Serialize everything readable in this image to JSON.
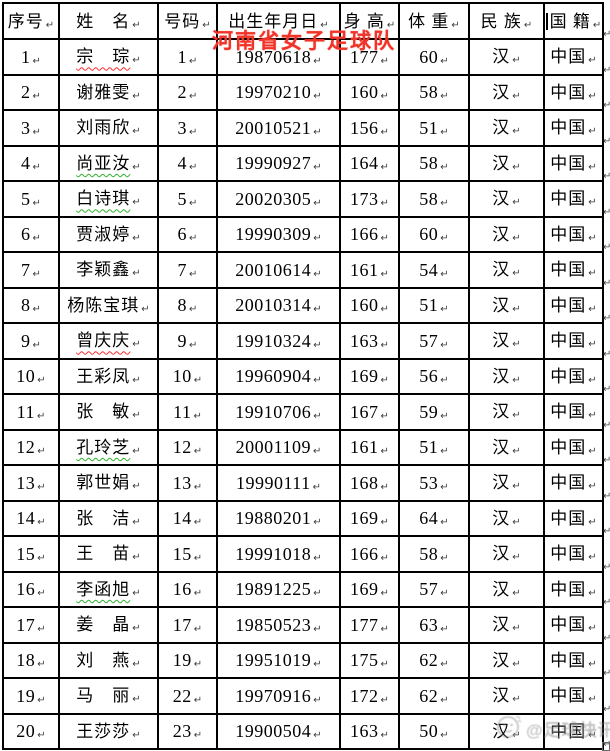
{
  "red_title": {
    "text": "河南省女子足球队",
    "color": "#f1342a"
  },
  "marks": {
    "cell_mark": "↵",
    "row_end_mark": "↵"
  },
  "watermark": {
    "handle": "@足球快讯",
    "emoji": "doge-face"
  },
  "table": {
    "headers": [
      {
        "label": "序号"
      },
      {
        "label": "姓　名"
      },
      {
        "label": "号码"
      },
      {
        "label": "出生年月日"
      },
      {
        "label": "身 高"
      },
      {
        "label": "体 重"
      },
      {
        "label": "民 族"
      },
      {
        "label": "国 籍"
      }
    ],
    "rows": [
      {
        "seq": "1",
        "name": "宗　琮",
        "wavy": "red",
        "num": "1",
        "dob": "19870618",
        "height": "177",
        "weight": "60",
        "ethnic": "汉",
        "nation": "中国"
      },
      {
        "seq": "2",
        "name": "谢雅雯",
        "wavy": "",
        "num": "2",
        "dob": "19970210",
        "height": "160",
        "weight": "58",
        "ethnic": "汉",
        "nation": "中国"
      },
      {
        "seq": "3",
        "name": "刘雨欣",
        "wavy": "",
        "num": "3",
        "dob": "20010521",
        "height": "156",
        "weight": "51",
        "ethnic": "汉",
        "nation": "中国"
      },
      {
        "seq": "4",
        "name": "尚亚汝",
        "wavy": "green",
        "num": "4",
        "dob": "19990927",
        "height": "164",
        "weight": "58",
        "ethnic": "汉",
        "nation": "中国"
      },
      {
        "seq": "5",
        "name": "白诗琪",
        "wavy": "green",
        "num": "5",
        "dob": "20020305",
        "height": "173",
        "weight": "58",
        "ethnic": "汉",
        "nation": "中国"
      },
      {
        "seq": "6",
        "name": "贾淑婷",
        "wavy": "",
        "num": "6",
        "dob": "19990309",
        "height": "166",
        "weight": "60",
        "ethnic": "汉",
        "nation": "中国"
      },
      {
        "seq": "7",
        "name": "李颖鑫",
        "wavy": "",
        "num": "7",
        "dob": "20010614",
        "height": "161",
        "weight": "54",
        "ethnic": "汉",
        "nation": "中国"
      },
      {
        "seq": "8",
        "name": "杨陈宝琪",
        "wavy": "",
        "num": "8",
        "dob": "20010314",
        "height": "160",
        "weight": "51",
        "ethnic": "汉",
        "nation": "中国"
      },
      {
        "seq": "9",
        "name": "曾庆庆",
        "wavy": "red",
        "num": "9",
        "dob": "19910324",
        "height": "163",
        "weight": "57",
        "ethnic": "汉",
        "nation": "中国"
      },
      {
        "seq": "10",
        "name": "王彩凤",
        "wavy": "",
        "num": "10",
        "dob": "19960904",
        "height": "169",
        "weight": "56",
        "ethnic": "汉",
        "nation": "中国"
      },
      {
        "seq": "11",
        "name": "张　敏",
        "wavy": "",
        "num": "11",
        "dob": "19910706",
        "height": "167",
        "weight": "59",
        "ethnic": "汉",
        "nation": "中国"
      },
      {
        "seq": "12",
        "name": "孔玲芝",
        "wavy": "green",
        "num": "12",
        "dob": "20001109",
        "height": "161",
        "weight": "51",
        "ethnic": "汉",
        "nation": "中国"
      },
      {
        "seq": "13",
        "name": "郭世娟",
        "wavy": "",
        "num": "13",
        "dob": "19990111",
        "height": "168",
        "weight": "53",
        "ethnic": "汉",
        "nation": "中国"
      },
      {
        "seq": "14",
        "name": "张　洁",
        "wavy": "",
        "num": "14",
        "dob": "19880201",
        "height": "169",
        "weight": "64",
        "ethnic": "汉",
        "nation": "中国"
      },
      {
        "seq": "15",
        "name": "王　苗",
        "wavy": "",
        "num": "15",
        "dob": "19991018",
        "height": "166",
        "weight": "58",
        "ethnic": "汉",
        "nation": "中国"
      },
      {
        "seq": "16",
        "name": "李函旭",
        "wavy": "green",
        "num": "16",
        "dob": "19891225",
        "height": "169",
        "weight": "57",
        "ethnic": "汉",
        "nation": "中国"
      },
      {
        "seq": "17",
        "name": "姜　晶",
        "wavy": "",
        "num": "17",
        "dob": "19850523",
        "height": "177",
        "weight": "63",
        "ethnic": "汉",
        "nation": "中国"
      },
      {
        "seq": "18",
        "name": "刘　燕",
        "wavy": "",
        "num": "19",
        "dob": "19951019",
        "height": "175",
        "weight": "62",
        "ethnic": "汉",
        "nation": "中国"
      },
      {
        "seq": "19",
        "name": "马　丽",
        "wavy": "",
        "num": "22",
        "dob": "19970916",
        "height": "172",
        "weight": "62",
        "ethnic": "汉",
        "nation": "中国"
      },
      {
        "seq": "20",
        "name": "王莎莎",
        "wavy": "",
        "num": "23",
        "dob": "19900504",
        "height": "163",
        "weight": "50",
        "ethnic": "汉",
        "nation": "中国"
      }
    ]
  }
}
